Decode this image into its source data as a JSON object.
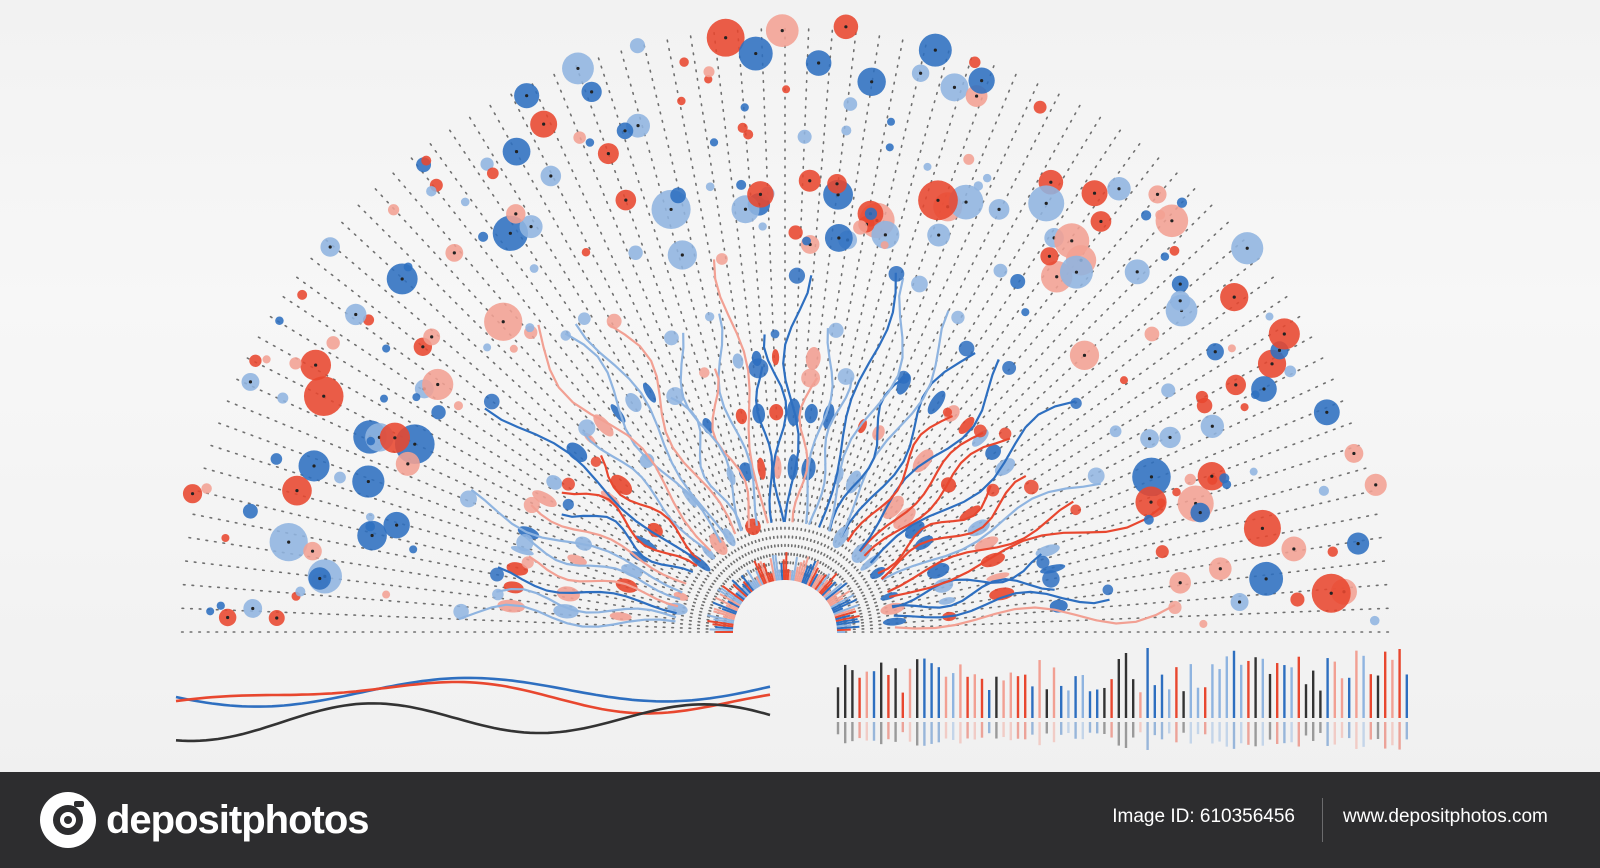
{
  "colors": {
    "red": "#e8472f",
    "red_light": "#f2a093",
    "blue": "#2e6fc0",
    "blue_light": "#8fb4e0",
    "dark": "#333333",
    "footer_bg": "#2d2d2f"
  },
  "footer": {
    "logo_icon": "camera-icon",
    "brand": "depositphotos",
    "image_id": "Image ID: 610356456",
    "url": "www.depositphotos.com"
  }
}
